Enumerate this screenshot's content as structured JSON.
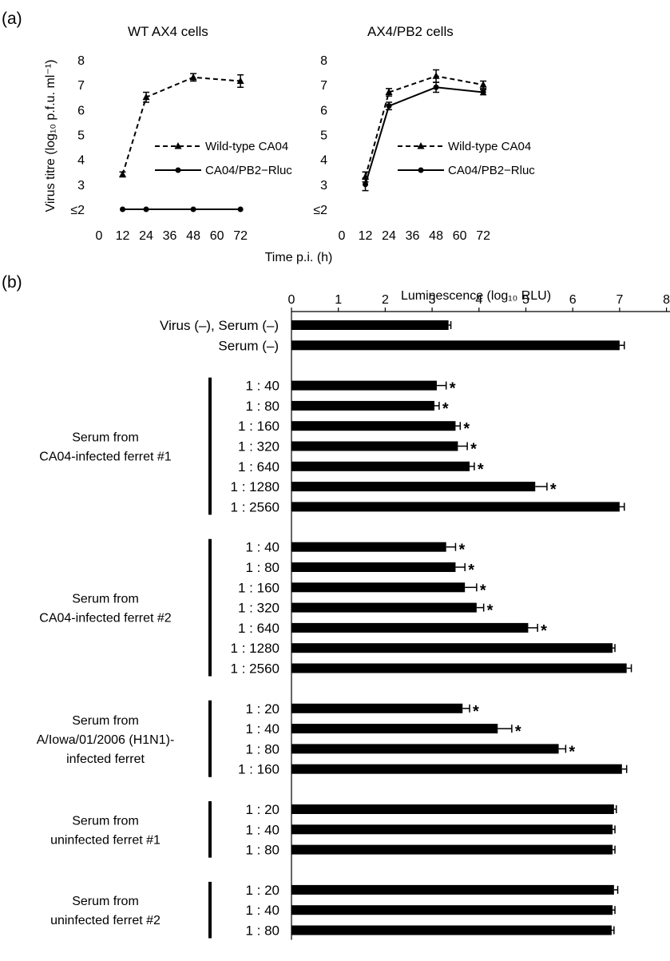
{
  "panel_a": {
    "label": "(a)",
    "ylabel": "Virus titre (log₁₀ p.f.u. ml⁻¹)",
    "xlabel": "Time p.i. (h)",
    "legend": [
      "Wild-type CA04",
      "CA04/PB2−Rluc"
    ],
    "y_tick_labels": [
      "≤2",
      "3",
      "4",
      "5",
      "6",
      "7",
      "8"
    ],
    "x_tick_labels": [
      "0",
      "12",
      "24",
      "36",
      "48",
      "60",
      "72"
    ]
  },
  "panel_b": {
    "label": "(b)",
    "xlabel": "Luminescence (log₁₀ RLU)",
    "x_tick_labels": [
      "0",
      "1",
      "2",
      "3",
      "4",
      "5",
      "6",
      "7",
      "8"
    ],
    "significance_marker": "*"
  },
  "chart_data": [
    {
      "type": "line",
      "title": "WT AX4 cells",
      "xlabel": "Time p.i. (h)",
      "ylabel": "Virus titre (log10 p.f.u. ml-1)",
      "xlim": [
        0,
        80
      ],
      "ylim": [
        2,
        8
      ],
      "x": [
        12,
        24,
        48,
        72
      ],
      "series": [
        {
          "name": "Wild-type CA04",
          "style": "dashed",
          "marker": "triangle",
          "values": [
            3.4,
            6.5,
            7.3,
            7.15
          ],
          "error": [
            0.1,
            0.2,
            0.15,
            0.25
          ]
        },
        {
          "name": "CA04/PB2−Rluc",
          "style": "solid",
          "marker": "circle",
          "values": [
            2,
            2,
            2,
            2
          ],
          "error": [
            0,
            0,
            0,
            0
          ]
        }
      ]
    },
    {
      "type": "line",
      "title": "AX4/PB2 cells",
      "xlabel": "Time p.i. (h)",
      "ylabel": "Virus titre (log10 p.f.u. ml-1)",
      "xlim": [
        0,
        80
      ],
      "ylim": [
        2,
        8
      ],
      "x": [
        12,
        24,
        48,
        72
      ],
      "series": [
        {
          "name": "Wild-type CA04",
          "style": "dashed",
          "marker": "triangle",
          "values": [
            3.3,
            6.7,
            7.35,
            7.0
          ],
          "error": [
            0.2,
            0.15,
            0.25,
            0.15
          ]
        },
        {
          "name": "CA04/PB2−Rluc",
          "style": "solid",
          "marker": "circle",
          "values": [
            3.0,
            6.15,
            6.9,
            6.7
          ],
          "error": [
            0.25,
            0.15,
            0.2,
            0.1
          ]
        }
      ]
    },
    {
      "type": "bar",
      "orientation": "horizontal",
      "xlabel": "Luminescence (log10 RLU)",
      "xlim": [
        0,
        8
      ],
      "groups": [
        {
          "label": [],
          "bracket": false,
          "rows": [
            {
              "label": "Virus (–), Serum (–)",
              "value": 3.35,
              "error": 0.05,
              "star": false
            },
            {
              "label": "Serum (–)",
              "value": 7.0,
              "error": 0.1,
              "star": false
            }
          ]
        },
        {
          "label": [
            "Serum from",
            "CA04-infected ferret #1"
          ],
          "bracket": true,
          "rows": [
            {
              "label": "1 : 40",
              "value": 3.1,
              "error": 0.2,
              "star": true
            },
            {
              "label": "1 : 80",
              "value": 3.05,
              "error": 0.1,
              "star": true
            },
            {
              "label": "1 : 160",
              "value": 3.5,
              "error": 0.1,
              "star": true
            },
            {
              "label": "1 : 320",
              "value": 3.55,
              "error": 0.2,
              "star": true
            },
            {
              "label": "1 : 640",
              "value": 3.8,
              "error": 0.1,
              "star": true
            },
            {
              "label": "1 : 1280",
              "value": 5.2,
              "error": 0.25,
              "star": true
            },
            {
              "label": "1 : 2560",
              "value": 7.0,
              "error": 0.1,
              "star": false
            }
          ]
        },
        {
          "label": [
            "Serum from",
            "CA04-infected ferret #2"
          ],
          "bracket": true,
          "rows": [
            {
              "label": "1 : 40",
              "value": 3.3,
              "error": 0.2,
              "star": true
            },
            {
              "label": "1 : 80",
              "value": 3.5,
              "error": 0.2,
              "star": true
            },
            {
              "label": "1 : 160",
              "value": 3.7,
              "error": 0.25,
              "star": true
            },
            {
              "label": "1 : 320",
              "value": 3.95,
              "error": 0.15,
              "star": true
            },
            {
              "label": "1 : 640",
              "value": 5.05,
              "error": 0.2,
              "star": true
            },
            {
              "label": "1 : 1280",
              "value": 6.85,
              "error": 0.05,
              "star": false
            },
            {
              "label": "1 : 2560",
              "value": 7.15,
              "error": 0.1,
              "star": false
            }
          ]
        },
        {
          "label": [
            "Serum from",
            "A/Iowa/01/2006 (H1N1)-",
            "infected ferret"
          ],
          "bracket": true,
          "rows": [
            {
              "label": "1 : 20",
              "value": 3.65,
              "error": 0.15,
              "star": true
            },
            {
              "label": "1 : 40",
              "value": 4.4,
              "error": 0.3,
              "star": true
            },
            {
              "label": "1 : 80",
              "value": 5.7,
              "error": 0.15,
              "star": true
            },
            {
              "label": "1 : 160",
              "value": 7.05,
              "error": 0.1,
              "star": false
            }
          ]
        },
        {
          "label": [
            "Serum from",
            "uninfected ferret #1"
          ],
          "bracket": true,
          "rows": [
            {
              "label": "1 : 20",
              "value": 6.88,
              "error": 0.05,
              "star": false
            },
            {
              "label": "1 : 40",
              "value": 6.85,
              "error": 0.05,
              "star": false
            },
            {
              "label": "1 : 80",
              "value": 6.85,
              "error": 0.05,
              "star": false
            }
          ]
        },
        {
          "label": [
            "Serum from",
            "uninfected ferret #2"
          ],
          "bracket": true,
          "rows": [
            {
              "label": "1 : 20",
              "value": 6.88,
              "error": 0.08,
              "star": false
            },
            {
              "label": "1 : 40",
              "value": 6.85,
              "error": 0.05,
              "star": false
            },
            {
              "label": "1 : 80",
              "value": 6.83,
              "error": 0.05,
              "star": false
            }
          ]
        }
      ]
    }
  ]
}
